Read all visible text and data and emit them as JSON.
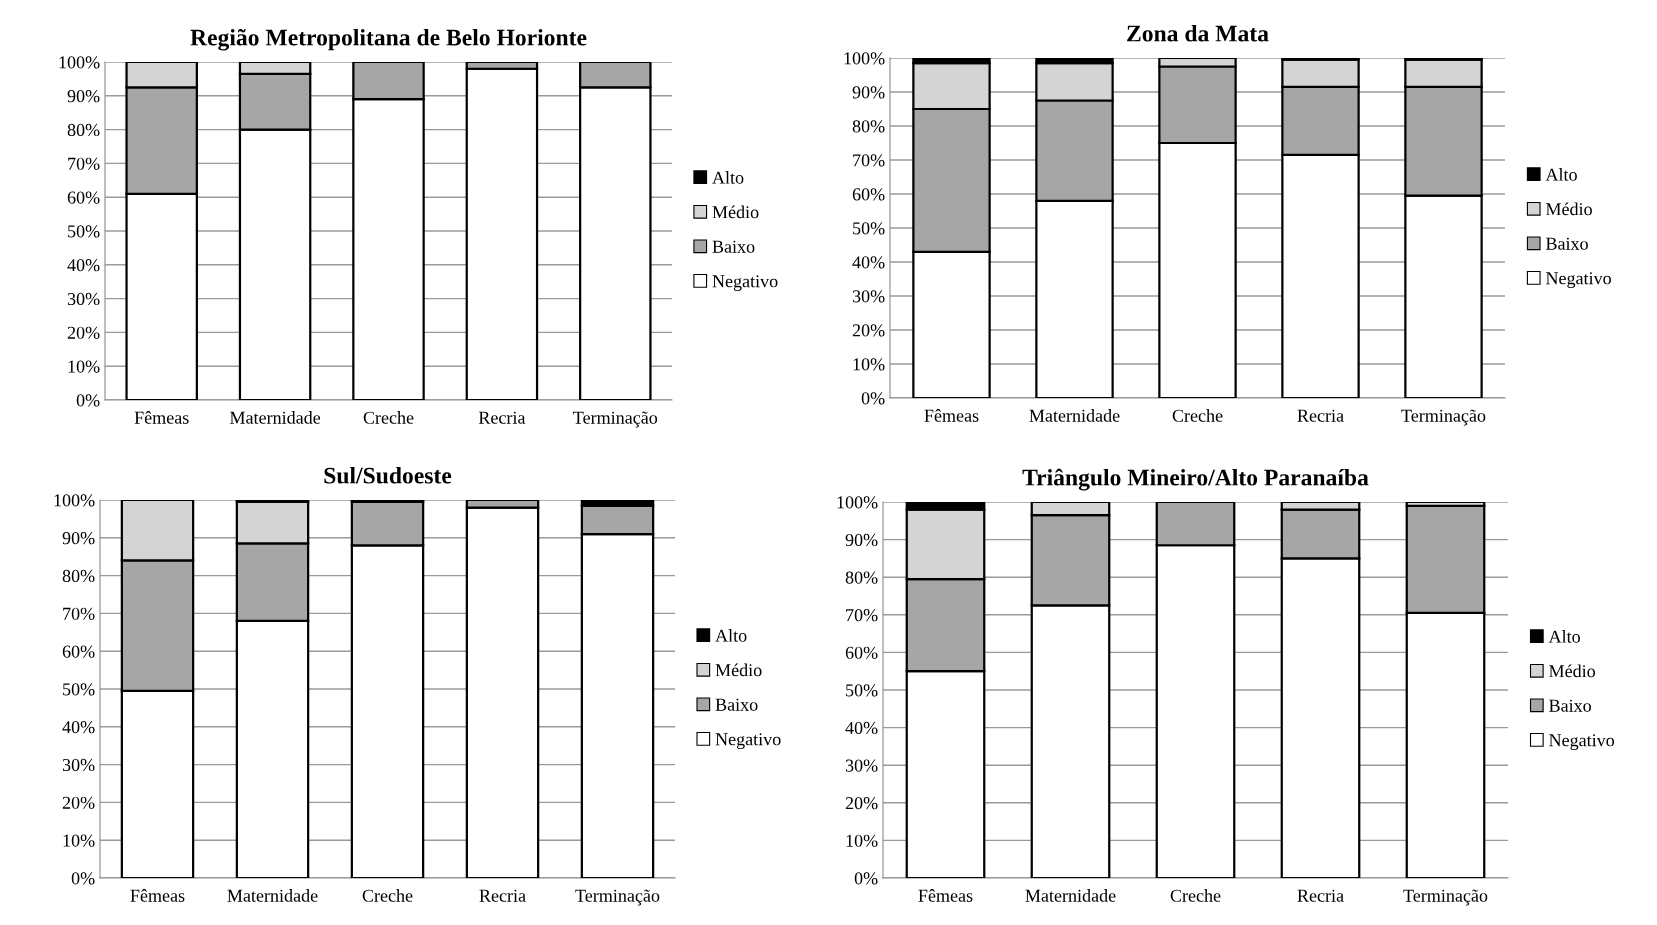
{
  "chart_data": [
    {
      "type": "bar",
      "stacked": true,
      "title": "Região Metropolitana de Belo Horionte",
      "categories": [
        "Fêmeas",
        "Maternidade",
        "Creche",
        "Recria",
        "Terminação"
      ],
      "ylim": [
        0,
        100
      ],
      "yticks": [
        {
          "value": 0,
          "label": "0%"
        },
        {
          "value": 10,
          "label": "10%"
        },
        {
          "value": 20,
          "label": "20%"
        },
        {
          "value": 30,
          "label": "30%"
        },
        {
          "value": 40,
          "label": "40%"
        },
        {
          "value": 50,
          "label": "50%"
        },
        {
          "value": 60,
          "label": "60%"
        },
        {
          "value": 70,
          "label": "70%"
        },
        {
          "value": 80,
          "label": "80%"
        },
        {
          "value": 90,
          "label": "90%"
        },
        {
          "value": 100,
          "label": "100%"
        }
      ],
      "grid": "y",
      "legend": "right",
      "series": [
        {
          "name": "Negativo",
          "color": "#ffffff",
          "values": [
            61,
            80,
            89,
            98,
            92.5
          ]
        },
        {
          "name": "Baixo",
          "color": "#a6a6a6",
          "values": [
            31.5,
            16.5,
            11,
            2,
            7.5
          ]
        },
        {
          "name": "Médio",
          "color": "#d4d4d4",
          "values": [
            7.5,
            3.5,
            0,
            0,
            0
          ]
        },
        {
          "name": "Alto",
          "color": "#000000",
          "values": [
            0,
            0,
            0,
            0,
            0
          ]
        }
      ]
    },
    {
      "type": "bar",
      "stacked": true,
      "title": "Zona da Mata",
      "categories": [
        "Fêmeas",
        "Maternidade",
        "Creche",
        "Recria",
        "Terminação"
      ],
      "ylim": [
        0,
        100
      ],
      "yticks": [
        {
          "value": 0,
          "label": "0%"
        },
        {
          "value": 10,
          "label": "10%"
        },
        {
          "value": 20,
          "label": "20%"
        },
        {
          "value": 30,
          "label": "30%"
        },
        {
          "value": 40,
          "label": "40%"
        },
        {
          "value": 50,
          "label": "50%"
        },
        {
          "value": 60,
          "label": "60%"
        },
        {
          "value": 70,
          "label": "70%"
        },
        {
          "value": 80,
          "label": "80%"
        },
        {
          "value": 90,
          "label": "90%"
        },
        {
          "value": 100,
          "label": "100%"
        }
      ],
      "grid": "y",
      "legend": "right",
      "series": [
        {
          "name": "Negativo",
          "color": "#ffffff",
          "values": [
            43,
            58,
            75,
            71.5,
            59.5
          ]
        },
        {
          "name": "Baixo",
          "color": "#a6a6a6",
          "values": [
            42,
            29.5,
            22.5,
            20,
            32
          ]
        },
        {
          "name": "Médio",
          "color": "#d4d4d4",
          "values": [
            13.5,
            11,
            2.5,
            8,
            8
          ]
        },
        {
          "name": "Alto",
          "color": "#000000",
          "values": [
            1.5,
            1.5,
            0,
            0.5,
            0.5
          ]
        }
      ]
    },
    {
      "type": "bar",
      "stacked": true,
      "title": "Sul/Sudoeste",
      "categories": [
        "Fêmeas",
        "Maternidade",
        "Creche",
        "Recria",
        "Terminação"
      ],
      "ylim": [
        0,
        100
      ],
      "yticks": [
        {
          "value": 0,
          "label": "0%"
        },
        {
          "value": 10,
          "label": "10%"
        },
        {
          "value": 20,
          "label": "20%"
        },
        {
          "value": 30,
          "label": "30%"
        },
        {
          "value": 40,
          "label": "40%"
        },
        {
          "value": 50,
          "label": "50%"
        },
        {
          "value": 60,
          "label": "60%"
        },
        {
          "value": 70,
          "label": "70%"
        },
        {
          "value": 80,
          "label": "80%"
        },
        {
          "value": 90,
          "label": "90%"
        },
        {
          "value": 100,
          "label": "100%"
        }
      ],
      "grid": "y",
      "legend": "right",
      "series": [
        {
          "name": "Negativo",
          "color": "#ffffff",
          "values": [
            49.5,
            68,
            88,
            98,
            91
          ]
        },
        {
          "name": "Baixo",
          "color": "#a6a6a6",
          "values": [
            34.5,
            20.5,
            11.5,
            2,
            7.5
          ]
        },
        {
          "name": "Médio",
          "color": "#d4d4d4",
          "values": [
            16,
            11,
            0,
            0,
            0
          ]
        },
        {
          "name": "Alto",
          "color": "#000000",
          "values": [
            0,
            0.5,
            0.5,
            0,
            1.5
          ]
        }
      ]
    },
    {
      "type": "bar",
      "stacked": true,
      "title": "Triângulo Mineiro/Alto Paranaíba",
      "categories": [
        "Fêmeas",
        "Maternidade",
        "Creche",
        "Recria",
        "Terminação"
      ],
      "ylim": [
        0,
        100
      ],
      "yticks": [
        {
          "value": 0,
          "label": "0%"
        },
        {
          "value": 10,
          "label": "10%"
        },
        {
          "value": 20,
          "label": "20%"
        },
        {
          "value": 30,
          "label": "30%"
        },
        {
          "value": 40,
          "label": "40%"
        },
        {
          "value": 50,
          "label": "50%"
        },
        {
          "value": 60,
          "label": "60%"
        },
        {
          "value": 70,
          "label": "70%"
        },
        {
          "value": 80,
          "label": "80%"
        },
        {
          "value": 90,
          "label": "90%"
        },
        {
          "value": 100,
          "label": "100%"
        }
      ],
      "grid": "y",
      "legend": "right",
      "series": [
        {
          "name": "Negativo",
          "color": "#ffffff",
          "values": [
            55,
            72.5,
            88.5,
            85,
            70.5
          ]
        },
        {
          "name": "Baixo",
          "color": "#a6a6a6",
          "values": [
            24.5,
            24,
            11.5,
            13,
            28.5
          ]
        },
        {
          "name": "Médio",
          "color": "#d4d4d4",
          "values": [
            18.5,
            3.5,
            0,
            2,
            1
          ]
        },
        {
          "name": "Alto",
          "color": "#000000",
          "values": [
            2,
            0,
            0,
            0,
            0
          ]
        }
      ]
    }
  ]
}
